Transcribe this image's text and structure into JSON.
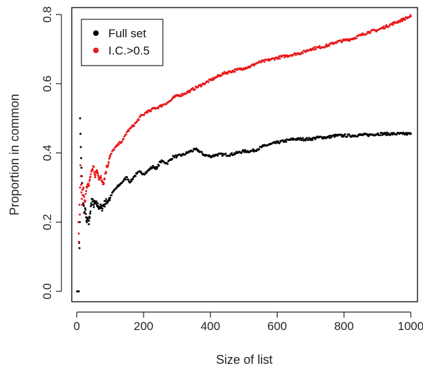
{
  "chart_data": {
    "type": "scatter",
    "title": "",
    "xlabel": "Size of list",
    "ylabel": "Proportion in common",
    "xlim": [
      -15,
      1020
    ],
    "ylim": [
      -0.03,
      0.82
    ],
    "x_ticks": [
      0,
      200,
      400,
      600,
      800,
      1000
    ],
    "x_tick_labels": [
      "0",
      "200",
      "400",
      "600",
      "800",
      "1000"
    ],
    "y_ticks": [
      0.0,
      0.2,
      0.4,
      0.6,
      0.8
    ],
    "y_tick_labels": [
      "0.0",
      "0.2",
      "0.4",
      "0.6",
      "0.8"
    ],
    "grid": false,
    "legend_position": "top-left",
    "series": [
      {
        "name": "Full set",
        "color": "#000000",
        "x": [
          1,
          2,
          3,
          4,
          5,
          6,
          7,
          8,
          9,
          10,
          11,
          12,
          13,
          14,
          15,
          16,
          17,
          18,
          20,
          22,
          25,
          28,
          30,
          33,
          36,
          40,
          45,
          50,
          55,
          60,
          65,
          70,
          75,
          80,
          90,
          100,
          110,
          120,
          130,
          140,
          150,
          160,
          170,
          180,
          190,
          200,
          210,
          220,
          230,
          240,
          250,
          260,
          270,
          280,
          290,
          300,
          320,
          340,
          360,
          380,
          400,
          420,
          440,
          460,
          480,
          500,
          520,
          540,
          560,
          580,
          600,
          625,
          650,
          675,
          700,
          725,
          750,
          775,
          800,
          825,
          850,
          875,
          900,
          925,
          950,
          975,
          1000
        ],
        "y": [
          0.0,
          0.0,
          0.0,
          0.0,
          0.0,
          0.0,
          0.14,
          0.125,
          0.2,
          0.5,
          0.455,
          0.417,
          0.385,
          0.357,
          0.333,
          0.313,
          0.294,
          0.278,
          0.25,
          0.227,
          0.24,
          0.214,
          0.2,
          0.212,
          0.194,
          0.225,
          0.267,
          0.25,
          0.255,
          0.25,
          0.246,
          0.243,
          0.24,
          0.25,
          0.26,
          0.27,
          0.29,
          0.3,
          0.31,
          0.32,
          0.33,
          0.315,
          0.33,
          0.34,
          0.345,
          0.34,
          0.345,
          0.355,
          0.36,
          0.355,
          0.375,
          0.375,
          0.37,
          0.38,
          0.39,
          0.39,
          0.395,
          0.405,
          0.41,
          0.395,
          0.39,
          0.395,
          0.395,
          0.395,
          0.4,
          0.405,
          0.405,
          0.41,
          0.42,
          0.425,
          0.43,
          0.435,
          0.44,
          0.44,
          0.44,
          0.445,
          0.445,
          0.45,
          0.45,
          0.45,
          0.452,
          0.452,
          0.455,
          0.455,
          0.455,
          0.455,
          0.455
        ]
      },
      {
        "name": "I.C.>0.5",
        "color": "#e8191b",
        "x": [
          5,
          6,
          7,
          8,
          9,
          10,
          11,
          12,
          13,
          14,
          15,
          16,
          17,
          18,
          20,
          22,
          25,
          28,
          30,
          33,
          36,
          40,
          45,
          50,
          55,
          60,
          65,
          70,
          75,
          80,
          90,
          100,
          110,
          120,
          130,
          140,
          150,
          160,
          170,
          180,
          190,
          200,
          210,
          220,
          230,
          240,
          250,
          260,
          270,
          280,
          290,
          300,
          320,
          340,
          360,
          380,
          400,
          420,
          440,
          460,
          480,
          500,
          520,
          540,
          560,
          580,
          600,
          625,
          650,
          675,
          700,
          725,
          750,
          775,
          800,
          825,
          850,
          875,
          900,
          925,
          950,
          975,
          1000
        ],
        "y": [
          0.2,
          0.167,
          0.143,
          0.25,
          0.222,
          0.3,
          0.364,
          0.333,
          0.308,
          0.286,
          0.267,
          0.25,
          0.294,
          0.278,
          0.3,
          0.273,
          0.26,
          0.29,
          0.3,
          0.303,
          0.306,
          0.33,
          0.35,
          0.36,
          0.33,
          0.35,
          0.33,
          0.33,
          0.32,
          0.315,
          0.36,
          0.39,
          0.41,
          0.42,
          0.43,
          0.44,
          0.46,
          0.47,
          0.48,
          0.49,
          0.505,
          0.51,
          0.52,
          0.52,
          0.53,
          0.53,
          0.535,
          0.54,
          0.545,
          0.55,
          0.56,
          0.565,
          0.57,
          0.58,
          0.59,
          0.6,
          0.61,
          0.62,
          0.63,
          0.635,
          0.64,
          0.645,
          0.65,
          0.66,
          0.665,
          0.67,
          0.675,
          0.68,
          0.685,
          0.69,
          0.7,
          0.705,
          0.71,
          0.72,
          0.725,
          0.73,
          0.74,
          0.75,
          0.755,
          0.765,
          0.775,
          0.785,
          0.795
        ]
      }
    ]
  }
}
